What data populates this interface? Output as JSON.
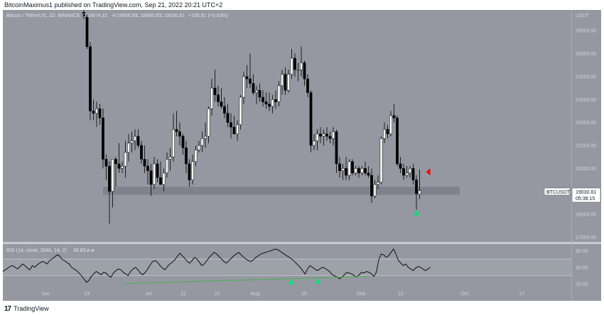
{
  "header": {
    "text": "BitcoinMaximus1 published on TradingView.com, Sep 21, 2022 20:21 UTC+2"
  },
  "legend": {
    "symbol": "Bitcoin / TetherUS, 1D, BINANCE",
    "open_label": "O",
    "open": "18874.31",
    "high_label": "H",
    "high": "19956.00",
    "low_label": "L",
    "low": "18666.00",
    "close_label": "C",
    "close": "19030.81",
    "change": "+155.81 (+0.83%)"
  },
  "price_axis": {
    "unit": "USDT",
    "ticks": [
      "26000.00",
      "25000.00",
      "24000.00",
      "23000.00",
      "22000.00",
      "21000.00",
      "20000.00",
      "19000.00",
      "18000.00",
      "17000.00"
    ]
  },
  "price_tag": {
    "symbol": "BTCUSDT",
    "price": "19030.81",
    "countdown": "05:38:15"
  },
  "rsi": {
    "label": "RSI (14, close, SMA, 14, 2)",
    "value": "39.83",
    "extra": "ø ø",
    "ticks": [
      "60.00",
      "40.00",
      "20.00"
    ]
  },
  "time_axis": {
    "labels": [
      "Jun",
      "13",
      "Jul",
      "11",
      "21",
      "Aug",
      "15",
      "Sep",
      "12",
      "Oct",
      "17"
    ]
  },
  "footer": {
    "brand": "TradingView",
    "logo_mark": "17"
  },
  "colors": {
    "background": "#9598a1",
    "up_candle": "#ffffff",
    "down_candle": "#000000",
    "support_zone": "#787b86",
    "trendline": "#4caf50",
    "arrow_up": "#00e676",
    "arrow_down": "#ff0000"
  },
  "chart_data": {
    "type": "candlestick",
    "ylim": [
      16800,
      26900
    ],
    "support_zone": [
      18850,
      19200
    ],
    "candles": [
      {
        "o": 26800,
        "h": 26900,
        "l": 26500,
        "c": 26600
      },
      {
        "o": 26600,
        "h": 26700,
        "l": 25200,
        "c": 25300
      },
      {
        "o": 25300,
        "h": 25500,
        "l": 22100,
        "c": 22500
      },
      {
        "o": 22500,
        "h": 23000,
        "l": 22100,
        "c": 22400
      },
      {
        "o": 22400,
        "h": 22900,
        "l": 21800,
        "c": 22600
      },
      {
        "o": 22600,
        "h": 22800,
        "l": 21900,
        "c": 22200
      },
      {
        "o": 22200,
        "h": 22600,
        "l": 20000,
        "c": 20400
      },
      {
        "o": 20400,
        "h": 20600,
        "l": 19500,
        "c": 20100
      },
      {
        "o": 20100,
        "h": 20300,
        "l": 17600,
        "c": 19000
      },
      {
        "o": 19000,
        "h": 20400,
        "l": 18300,
        "c": 20400
      },
      {
        "o": 20400,
        "h": 20500,
        "l": 19200,
        "c": 20200
      },
      {
        "o": 20200,
        "h": 21100,
        "l": 19800,
        "c": 20000
      },
      {
        "o": 20000,
        "h": 20300,
        "l": 19800,
        "c": 20100
      },
      {
        "o": 20100,
        "h": 21200,
        "l": 19600,
        "c": 20700
      },
      {
        "o": 20700,
        "h": 21500,
        "l": 20300,
        "c": 21100
      },
      {
        "o": 21100,
        "h": 21600,
        "l": 20700,
        "c": 21200
      },
      {
        "o": 21200,
        "h": 21700,
        "l": 20800,
        "c": 21400
      },
      {
        "o": 21400,
        "h": 21700,
        "l": 20900,
        "c": 21000
      },
      {
        "o": 21000,
        "h": 21200,
        "l": 20200,
        "c": 20400
      },
      {
        "o": 20400,
        "h": 21000,
        "l": 19800,
        "c": 20100
      },
      {
        "o": 20100,
        "h": 20400,
        "l": 19300,
        "c": 19900
      },
      {
        "o": 19900,
        "h": 20200,
        "l": 18800,
        "c": 19300
      },
      {
        "o": 19300,
        "h": 20500,
        "l": 19100,
        "c": 20200
      },
      {
        "o": 20200,
        "h": 20400,
        "l": 19400,
        "c": 19600
      },
      {
        "o": 19600,
        "h": 20300,
        "l": 19300,
        "c": 19300
      },
      {
        "o": 19300,
        "h": 20000,
        "l": 19000,
        "c": 19800
      },
      {
        "o": 19800,
        "h": 20700,
        "l": 19600,
        "c": 20400
      },
      {
        "o": 20400,
        "h": 20900,
        "l": 19900,
        "c": 20500
      },
      {
        "o": 20500,
        "h": 22400,
        "l": 20300,
        "c": 21700
      },
      {
        "o": 21700,
        "h": 22500,
        "l": 21400,
        "c": 21600
      },
      {
        "o": 21600,
        "h": 22000,
        "l": 21000,
        "c": 21400
      },
      {
        "o": 21400,
        "h": 21500,
        "l": 20600,
        "c": 20900
      },
      {
        "o": 20900,
        "h": 21200,
        "l": 19800,
        "c": 20200
      },
      {
        "o": 20200,
        "h": 20400,
        "l": 19200,
        "c": 19500
      },
      {
        "o": 19500,
        "h": 20600,
        "l": 19300,
        "c": 20300
      },
      {
        "o": 20300,
        "h": 21000,
        "l": 20100,
        "c": 20800
      },
      {
        "o": 20800,
        "h": 21200,
        "l": 20700,
        "c": 21000
      },
      {
        "o": 21000,
        "h": 21600,
        "l": 20700,
        "c": 21300
      },
      {
        "o": 21300,
        "h": 22000,
        "l": 20900,
        "c": 21400
      },
      {
        "o": 21400,
        "h": 22700,
        "l": 21100,
        "c": 22600
      },
      {
        "o": 22600,
        "h": 23900,
        "l": 22300,
        "c": 23500
      },
      {
        "o": 23500,
        "h": 24300,
        "l": 22900,
        "c": 23200
      },
      {
        "o": 23200,
        "h": 23600,
        "l": 22700,
        "c": 22900
      },
      {
        "o": 22900,
        "h": 23500,
        "l": 22600,
        "c": 22700
      },
      {
        "o": 22700,
        "h": 23100,
        "l": 22200,
        "c": 22400
      },
      {
        "o": 22400,
        "h": 22800,
        "l": 21800,
        "c": 22000
      },
      {
        "o": 22000,
        "h": 22400,
        "l": 21300,
        "c": 21800
      },
      {
        "o": 21800,
        "h": 22300,
        "l": 21500,
        "c": 21500
      },
      {
        "o": 21500,
        "h": 22100,
        "l": 21200,
        "c": 21900
      },
      {
        "o": 21900,
        "h": 23200,
        "l": 21700,
        "c": 23100
      },
      {
        "o": 23100,
        "h": 24200,
        "l": 22800,
        "c": 24000
      },
      {
        "o": 24000,
        "h": 24500,
        "l": 23500,
        "c": 23900
      },
      {
        "o": 23900,
        "h": 25000,
        "l": 23500,
        "c": 23700
      },
      {
        "o": 23700,
        "h": 24100,
        "l": 23200,
        "c": 23300
      },
      {
        "o": 23300,
        "h": 23600,
        "l": 22800,
        "c": 23400
      },
      {
        "o": 23400,
        "h": 23700,
        "l": 22900,
        "c": 23100
      },
      {
        "o": 23100,
        "h": 23400,
        "l": 22700,
        "c": 22900
      },
      {
        "o": 22900,
        "h": 23300,
        "l": 22600,
        "c": 22800
      },
      {
        "o": 22800,
        "h": 23300,
        "l": 22500,
        "c": 22700
      },
      {
        "o": 22700,
        "h": 23200,
        "l": 22400,
        "c": 23000
      },
      {
        "o": 23000,
        "h": 23400,
        "l": 22600,
        "c": 22900
      },
      {
        "o": 22900,
        "h": 23800,
        "l": 22700,
        "c": 23600
      },
      {
        "o": 23600,
        "h": 24300,
        "l": 23200,
        "c": 24100
      },
      {
        "o": 24100,
        "h": 24400,
        "l": 23200,
        "c": 23400
      },
      {
        "o": 23400,
        "h": 24300,
        "l": 23300,
        "c": 24100
      },
      {
        "o": 24100,
        "h": 25200,
        "l": 23900,
        "c": 24800
      },
      {
        "o": 24800,
        "h": 25000,
        "l": 24000,
        "c": 24300
      },
      {
        "o": 24300,
        "h": 24600,
        "l": 23800,
        "c": 24300
      },
      {
        "o": 24300,
        "h": 25300,
        "l": 24000,
        "c": 24600
      },
      {
        "o": 24600,
        "h": 24700,
        "l": 23600,
        "c": 23900
      },
      {
        "o": 23900,
        "h": 24100,
        "l": 23100,
        "c": 23300
      },
      {
        "o": 23300,
        "h": 23400,
        "l": 20700,
        "c": 21000
      },
      {
        "o": 21000,
        "h": 21500,
        "l": 20800,
        "c": 21200
      },
      {
        "o": 21200,
        "h": 21700,
        "l": 20800,
        "c": 21500
      },
      {
        "o": 21500,
        "h": 21800,
        "l": 21100,
        "c": 21400
      },
      {
        "o": 21400,
        "h": 21700,
        "l": 21000,
        "c": 21500
      },
      {
        "o": 21500,
        "h": 21800,
        "l": 21200,
        "c": 21400
      },
      {
        "o": 21400,
        "h": 21600,
        "l": 21100,
        "c": 21300
      },
      {
        "o": 21300,
        "h": 21800,
        "l": 21000,
        "c": 21600
      },
      {
        "o": 21600,
        "h": 21700,
        "l": 19800,
        "c": 20200
      },
      {
        "o": 20200,
        "h": 20500,
        "l": 19600,
        "c": 19900
      },
      {
        "o": 19900,
        "h": 20200,
        "l": 19500,
        "c": 20000
      },
      {
        "o": 20000,
        "h": 20500,
        "l": 19500,
        "c": 19700
      },
      {
        "o": 19700,
        "h": 20400,
        "l": 19500,
        "c": 20300
      },
      {
        "o": 20300,
        "h": 20400,
        "l": 19700,
        "c": 19800
      },
      {
        "o": 19800,
        "h": 20100,
        "l": 19700,
        "c": 20000
      },
      {
        "o": 20000,
        "h": 20100,
        "l": 19600,
        "c": 19800
      },
      {
        "o": 19800,
        "h": 20100,
        "l": 19700,
        "c": 20000
      },
      {
        "o": 20000,
        "h": 20300,
        "l": 19700,
        "c": 19800
      },
      {
        "o": 19800,
        "h": 20100,
        "l": 19600,
        "c": 19700
      },
      {
        "o": 19700,
        "h": 20000,
        "l": 18500,
        "c": 18800
      },
      {
        "o": 18800,
        "h": 19500,
        "l": 18700,
        "c": 19300
      },
      {
        "o": 19300,
        "h": 19700,
        "l": 19100,
        "c": 19400
      },
      {
        "o": 19400,
        "h": 21400,
        "l": 19300,
        "c": 21300
      },
      {
        "o": 21300,
        "h": 22000,
        "l": 21100,
        "c": 21700
      },
      {
        "o": 21700,
        "h": 21900,
        "l": 21300,
        "c": 21500
      },
      {
        "o": 21500,
        "h": 22500,
        "l": 21400,
        "c": 22300
      },
      {
        "o": 22300,
        "h": 22800,
        "l": 22000,
        "c": 22200
      },
      {
        "o": 22200,
        "h": 22300,
        "l": 20100,
        "c": 20200
      },
      {
        "o": 20200,
        "h": 20500,
        "l": 19800,
        "c": 20000
      },
      {
        "o": 20000,
        "h": 20200,
        "l": 19500,
        "c": 19700
      },
      {
        "o": 19700,
        "h": 20100,
        "l": 19600,
        "c": 19800
      },
      {
        "o": 19800,
        "h": 20100,
        "l": 19600,
        "c": 20000
      },
      {
        "o": 20000,
        "h": 20200,
        "l": 19300,
        "c": 19500
      },
      {
        "o": 19500,
        "h": 19700,
        "l": 18200,
        "c": 18900
      },
      {
        "o": 18874,
        "h": 19956,
        "l": 18666,
        "c": 19031
      }
    ],
    "rsi_ylim": [
      15,
      68
    ],
    "rsi_values": [
      35,
      37,
      39,
      41,
      42,
      40,
      38,
      41,
      44,
      42,
      39,
      37,
      42,
      40,
      43,
      45,
      47,
      46,
      44,
      48,
      50,
      52,
      55,
      54,
      50,
      48,
      46,
      44,
      40,
      38,
      36,
      33,
      30,
      26,
      22,
      24,
      29,
      32,
      35,
      33,
      31,
      34,
      33,
      30,
      28,
      33,
      36,
      38,
      37,
      34,
      32,
      30,
      35,
      38,
      40,
      37,
      33,
      31,
      34,
      38,
      43,
      47,
      48,
      46,
      42,
      39,
      37,
      41,
      44,
      46,
      49,
      53,
      57,
      54,
      51,
      47,
      45,
      48,
      52,
      50,
      46,
      42,
      44,
      48,
      52,
      55,
      58,
      56,
      53,
      50,
      47,
      45,
      48,
      51,
      54,
      56,
      58,
      55,
      52,
      50,
      48,
      47,
      49,
      52,
      54,
      56,
      57,
      58,
      59,
      60,
      61,
      62,
      61,
      59,
      57,
      55,
      53,
      51,
      49,
      46,
      43,
      40,
      36,
      32,
      38,
      42,
      40,
      38,
      36,
      38,
      40,
      39,
      37,
      35,
      31,
      30,
      28,
      26,
      28,
      31,
      34,
      33,
      32,
      30,
      28,
      31,
      34,
      33,
      35,
      34,
      32,
      29,
      34,
      49,
      56,
      55,
      52,
      54,
      58,
      62,
      56,
      48,
      45,
      42,
      44,
      40,
      38,
      36,
      39,
      41,
      40,
      38,
      36,
      38,
      40
    ],
    "rsi_trendline": [
      [
        0.268,
        20.5
      ],
      [
        0.82,
        29
      ]
    ],
    "rsi_bands": [
      30,
      50
    ],
    "markers": [
      {
        "type": "up",
        "candle_index": 104,
        "price": 18080
      },
      {
        "type": "down",
        "candle_index": 107,
        "price": 19850
      },
      {
        "type": "rsi_up",
        "rsi_x": 0.62,
        "value": 22
      },
      {
        "type": "rsi_up",
        "rsi_x": 0.68,
        "value": 23
      }
    ]
  }
}
